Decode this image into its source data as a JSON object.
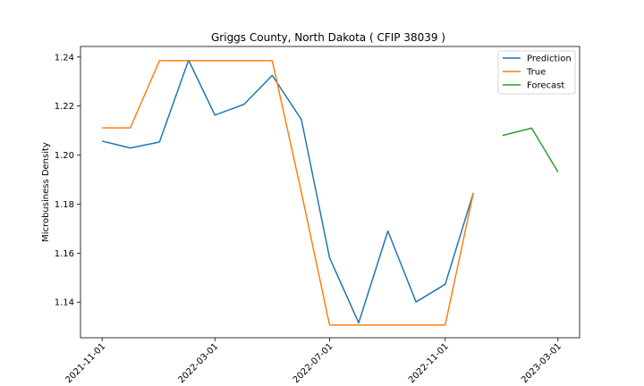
{
  "chart_data": {
    "type": "line",
    "title": "Griggs County, North Dakota ( CFIP 38039 )",
    "xlabel": "",
    "ylabel": "Microbusiness Density",
    "x_tick_labels": [
      "2021-11-01",
      "2022-03-01",
      "2022-07-01",
      "2022-11-01",
      "2023-03-01"
    ],
    "y_ticks": [
      1.14,
      1.16,
      1.18,
      1.2,
      1.22,
      1.24
    ],
    "y_tick_labels": [
      "1.14",
      "1.16",
      "1.18",
      "1.20",
      "1.22",
      "1.24"
    ],
    "ylim": [
      1.1255,
      1.2443
    ],
    "xlim": [
      "2021-10-09",
      "2023-03-24"
    ],
    "grid": false,
    "legend_position": "upper right",
    "series": [
      {
        "name": "Prediction",
        "color": "#1f77b4",
        "x": [
          "2021-11-01",
          "2021-12-01",
          "2022-01-01",
          "2022-02-01",
          "2022-03-01",
          "2022-04-01",
          "2022-05-01",
          "2022-06-01",
          "2022-07-01",
          "2022-08-01",
          "2022-09-01",
          "2022-10-01",
          "2022-11-01",
          "2022-12-01"
        ],
        "values": [
          1.2057,
          1.2029,
          1.2053,
          1.2387,
          1.2163,
          1.2207,
          1.2325,
          1.2145,
          1.1581,
          1.1316,
          1.169,
          1.1401,
          1.1473,
          1.1846
        ]
      },
      {
        "name": "True",
        "color": "#ff7f0e",
        "x": [
          "2021-11-01",
          "2021-12-01",
          "2022-01-01",
          "2022-02-01",
          "2022-03-01",
          "2022-04-01",
          "2022-05-01",
          "2022-06-01",
          "2022-07-01",
          "2022-08-01",
          "2022-09-01",
          "2022-10-01",
          "2022-11-01",
          "2022-12-01"
        ],
        "values": [
          1.2111,
          1.2111,
          1.2385,
          1.2385,
          1.2385,
          1.2385,
          1.2385,
          1.1848,
          1.1307,
          1.1307,
          1.1307,
          1.1307,
          1.1307,
          1.1846
        ]
      },
      {
        "name": "Forecast",
        "color": "#2ca02c",
        "x": [
          "2023-01-01",
          "2023-02-01",
          "2023-03-01"
        ],
        "values": [
          1.208,
          1.211,
          1.1931
        ]
      }
    ]
  }
}
